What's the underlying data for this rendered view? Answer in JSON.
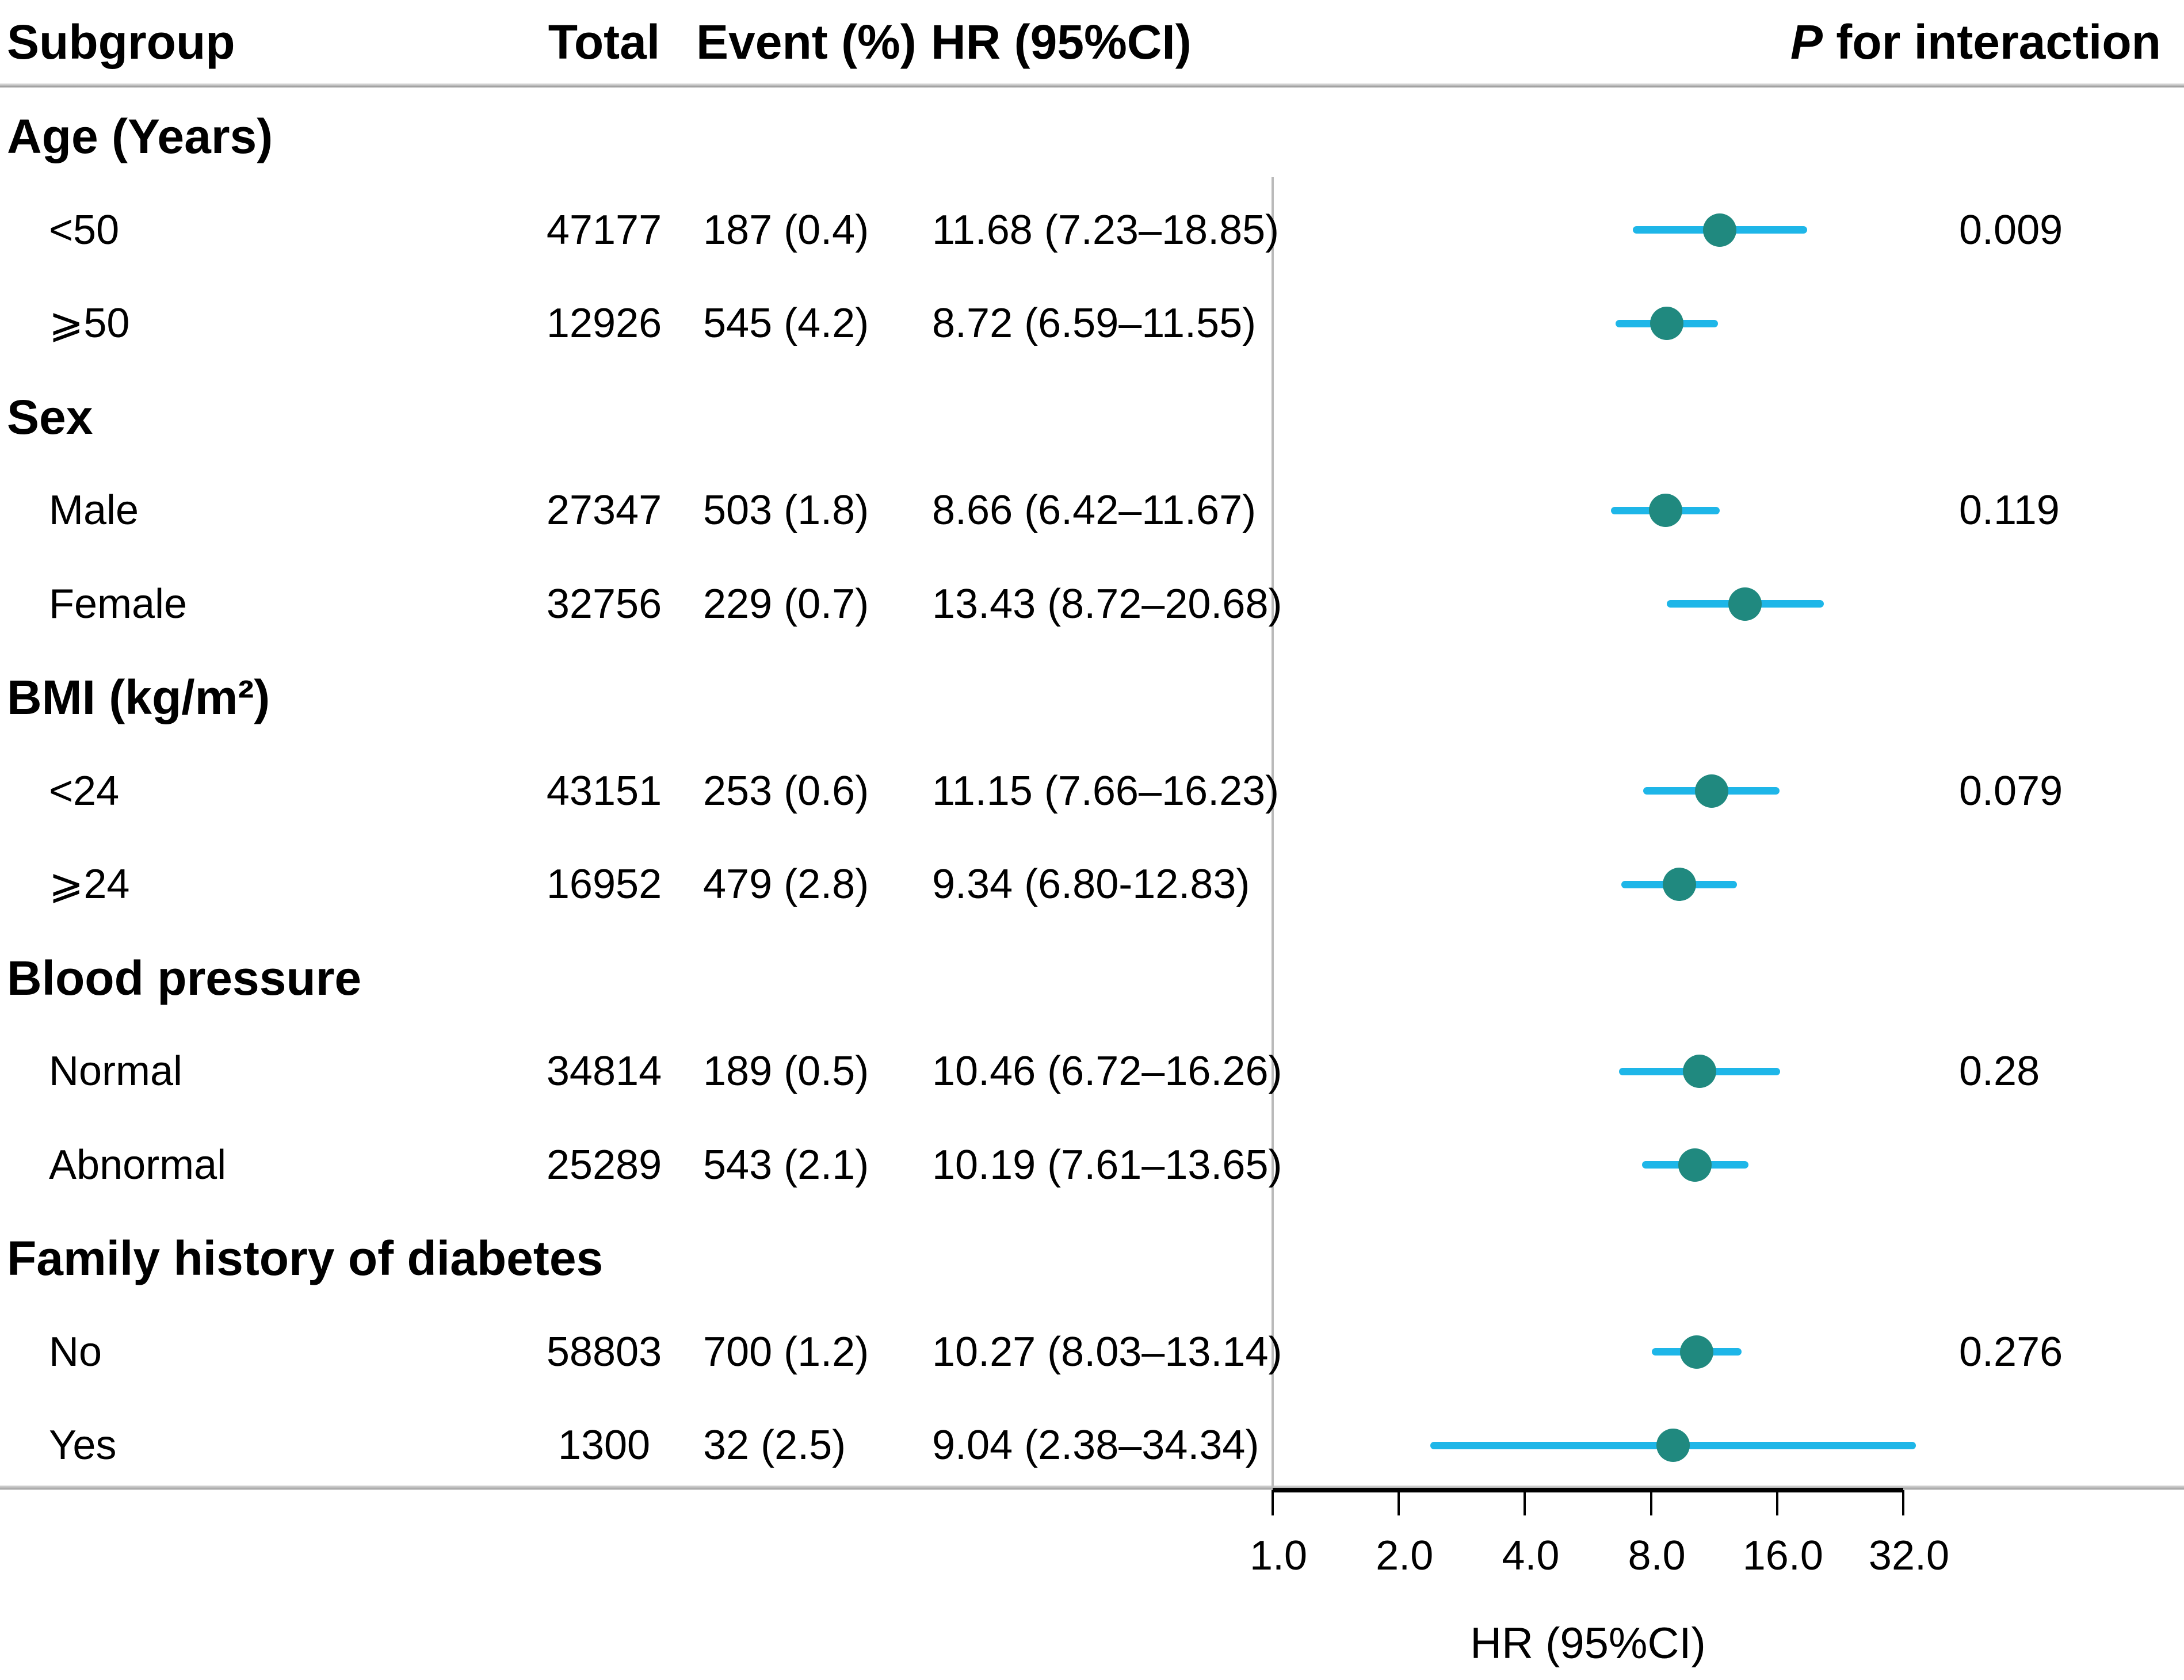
{
  "header": {
    "subgroup": "Subgroup",
    "total": "Total",
    "event": "Event (%)",
    "hr": "HR (95%CI)",
    "p_italic": "P",
    "p_rest": " for interaction"
  },
  "axis": {
    "title": "HR (95%CI)",
    "ticks": [
      {
        "label": "1.0",
        "value": 1.0
      },
      {
        "label": "2.0",
        "value": 2.0
      },
      {
        "label": "4.0",
        "value": 4.0
      },
      {
        "label": "8.0",
        "value": 8.0
      },
      {
        "label": "16.0",
        "value": 16.0
      },
      {
        "label": "32.0",
        "value": 32.0
      }
    ]
  },
  "colors": {
    "ci_line": "#1eb6e8",
    "marker": "#20897f",
    "reference_line": "#bababa",
    "text": "#000000"
  },
  "rows": [
    {
      "type": "group",
      "label": "Age (Years)"
    },
    {
      "type": "item",
      "label": "<50",
      "total": "47177",
      "event": "187 (0.4)",
      "hr_text": "11.68 (7.23–18.85)",
      "p": "0.009",
      "hr": 11.68,
      "lo": 7.23,
      "hi": 18.85
    },
    {
      "type": "item",
      "label": "⩾50",
      "total": "12926",
      "event": "545 (4.2)",
      "hr_text": "8.72 (6.59–11.55)",
      "p": "",
      "hr": 8.72,
      "lo": 6.59,
      "hi": 11.55
    },
    {
      "type": "group",
      "label": "Sex"
    },
    {
      "type": "item",
      "label": "Male",
      "total": "27347",
      "event": "503 (1.8)",
      "hr_text": "8.66 (6.42–11.67)",
      "p": "0.119",
      "hr": 8.66,
      "lo": 6.42,
      "hi": 11.67
    },
    {
      "type": "item",
      "label": "Female",
      "total": "32756",
      "event": "229 (0.7)",
      "hr_text": "13.43 (8.72–20.68)",
      "p": "",
      "hr": 13.43,
      "lo": 8.72,
      "hi": 20.68
    },
    {
      "type": "group",
      "label": "BMI (kg/m²)"
    },
    {
      "type": "item",
      "label": "<24",
      "total": "43151",
      "event": "253 (0.6)",
      "hr_text": "11.15 (7.66–16.23)",
      "p": "0.079",
      "hr": 11.15,
      "lo": 7.66,
      "hi": 16.23
    },
    {
      "type": "item",
      "label": "⩾24",
      "total": "16952",
      "event": "479 (2.8)",
      "hr_text": "9.34 (6.80-12.83)",
      "p": "",
      "hr": 9.34,
      "lo": 6.8,
      "hi": 12.83
    },
    {
      "type": "group",
      "label": "Blood pressure"
    },
    {
      "type": "item",
      "label": "Normal",
      "total": "34814",
      "event": "189 (0.5)",
      "hr_text": "10.46 (6.72–16.26)",
      "p": "0.28",
      "hr": 10.46,
      "lo": 6.72,
      "hi": 16.26
    },
    {
      "type": "item",
      "label": "Abnormal",
      "total": "25289",
      "event": "543 (2.1)",
      "hr_text": "10.19 (7.61–13.65)",
      "p": "",
      "hr": 10.19,
      "lo": 7.61,
      "hi": 13.65
    },
    {
      "type": "group",
      "label": "Family history of diabetes"
    },
    {
      "type": "item",
      "label": "No",
      "total": "58803",
      "event": "700 (1.2)",
      "hr_text": "10.27 (8.03–13.14)",
      "p": "0.276",
      "hr": 10.27,
      "lo": 8.03,
      "hi": 13.14
    },
    {
      "type": "item",
      "label": "Yes",
      "total": "1300",
      "event": "32 (2.5)",
      "hr_text": "9.04 (2.38–34.34)",
      "p": "",
      "hr": 9.04,
      "lo": 2.38,
      "hi": 34.34
    }
  ],
  "chart_data": {
    "type": "scatter",
    "variant": "forest-plot",
    "title": "",
    "xlabel": "HR (95%CI)",
    "x_scale": "log2",
    "x_ticks": [
      1.0,
      2.0,
      4.0,
      8.0,
      16.0,
      32.0
    ],
    "x_range": [
      1.0,
      36.0
    ],
    "reference_x": 1.0,
    "legend": "none",
    "grid": false,
    "groups": [
      {
        "label": "Age (Years)",
        "p_for_interaction": 0.009,
        "items": [
          {
            "label": "<50",
            "total": 47177,
            "events": 187,
            "event_pct": 0.4,
            "hr": 11.68,
            "ci_low": 7.23,
            "ci_high": 18.85
          },
          {
            "label": "⩾50",
            "total": 12926,
            "events": 545,
            "event_pct": 4.2,
            "hr": 8.72,
            "ci_low": 6.59,
            "ci_high": 11.55
          }
        ]
      },
      {
        "label": "Sex",
        "p_for_interaction": 0.119,
        "items": [
          {
            "label": "Male",
            "total": 27347,
            "events": 503,
            "event_pct": 1.8,
            "hr": 8.66,
            "ci_low": 6.42,
            "ci_high": 11.67
          },
          {
            "label": "Female",
            "total": 32756,
            "events": 229,
            "event_pct": 0.7,
            "hr": 13.43,
            "ci_low": 8.72,
            "ci_high": 20.68
          }
        ]
      },
      {
        "label": "BMI (kg/m²)",
        "p_for_interaction": 0.079,
        "items": [
          {
            "label": "<24",
            "total": 43151,
            "events": 253,
            "event_pct": 0.6,
            "hr": 11.15,
            "ci_low": 7.66,
            "ci_high": 16.23
          },
          {
            "label": "⩾24",
            "total": 16952,
            "events": 479,
            "event_pct": 2.8,
            "hr": 9.34,
            "ci_low": 6.8,
            "ci_high": 12.83
          }
        ]
      },
      {
        "label": "Blood pressure",
        "p_for_interaction": 0.28,
        "items": [
          {
            "label": "Normal",
            "total": 34814,
            "events": 189,
            "event_pct": 0.5,
            "hr": 10.46,
            "ci_low": 6.72,
            "ci_high": 16.26
          },
          {
            "label": "Abnormal",
            "total": 25289,
            "events": 543,
            "event_pct": 2.1,
            "hr": 10.19,
            "ci_low": 7.61,
            "ci_high": 13.65
          }
        ]
      },
      {
        "label": "Family history of diabetes",
        "p_for_interaction": 0.276,
        "items": [
          {
            "label": "No",
            "total": 58803,
            "events": 700,
            "event_pct": 1.2,
            "hr": 10.27,
            "ci_low": 8.03,
            "ci_high": 13.14
          },
          {
            "label": "Yes",
            "total": 1300,
            "events": 32,
            "event_pct": 2.5,
            "hr": 9.04,
            "ci_low": 2.38,
            "ci_high": 34.34
          }
        ]
      }
    ]
  }
}
